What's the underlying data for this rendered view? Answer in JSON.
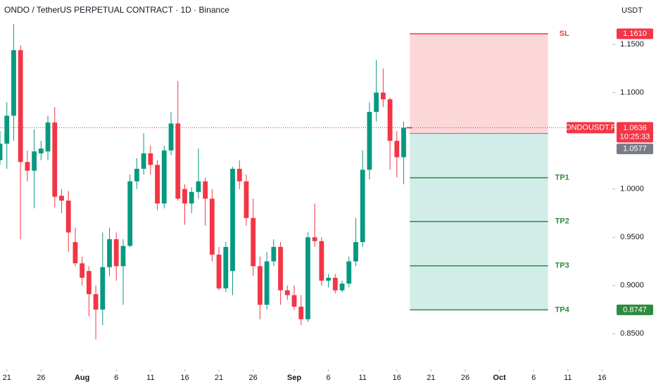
{
  "chart_data": {
    "type": "candlestick",
    "title": "ONDO / TetherUS PERPETUAL CONTRACT · 1D · Binance",
    "y_axis_label": "USDT",
    "up_color": "#089981",
    "down_color": "#f23645",
    "xlim": [
      0,
      89.5
    ],
    "ylim": [
      0.813,
      1.196
    ],
    "xticks": [
      {
        "value": 1,
        "label": "21"
      },
      {
        "value": 6,
        "label": "26"
      },
      {
        "value": 12,
        "label": "Aug"
      },
      {
        "value": 17,
        "label": "6"
      },
      {
        "value": 22,
        "label": "11"
      },
      {
        "value": 27,
        "label": "16"
      },
      {
        "value": 32,
        "label": "21"
      },
      {
        "value": 37,
        "label": "26"
      },
      {
        "value": 43,
        "label": "Sep"
      },
      {
        "value": 48,
        "label": "6"
      },
      {
        "value": 53,
        "label": "11"
      },
      {
        "value": 58,
        "label": "16"
      },
      {
        "value": 63,
        "label": "21"
      },
      {
        "value": 68,
        "label": "26"
      },
      {
        "value": 73,
        "label": "Oct"
      },
      {
        "value": 78,
        "label": "6"
      },
      {
        "value": 83,
        "label": "11"
      },
      {
        "value": 88,
        "label": "16"
      }
    ],
    "yticks": [
      {
        "value": 0.85,
        "label": "0.8500"
      },
      {
        "value": 0.9,
        "label": "0.9000"
      },
      {
        "value": 0.95,
        "label": "0.9500"
      },
      {
        "value": 1.0,
        "label": "1.0000"
      },
      {
        "value": 1.1,
        "label": "1.1000"
      },
      {
        "value": 1.15,
        "label": "1.1500"
      }
    ],
    "x": [
      0,
      1,
      2,
      3,
      4,
      5,
      6,
      7,
      8,
      9,
      10,
      11,
      12,
      13,
      14,
      15,
      16,
      17,
      18,
      19,
      20,
      21,
      22,
      23,
      24,
      25,
      26,
      27,
      28,
      29,
      30,
      31,
      32,
      33,
      34,
      35,
      36,
      37,
      38,
      39,
      40,
      41,
      42,
      43,
      44,
      45,
      46,
      47,
      48,
      49,
      50,
      51,
      52,
      53,
      54,
      55,
      56,
      57,
      58,
      59
    ],
    "open": [
      1.03,
      1.047,
      1.076,
      1.144,
      1.028,
      1.019,
      1.037,
      1.039,
      1.069,
      0.993,
      0.988,
      0.945,
      0.923,
      0.915,
      0.891,
      0.875,
      0.919,
      0.948,
      0.92,
      0.941,
      1.008,
      1.021,
      1.037,
      1.025,
      0.985,
      1.04,
      1.068,
      1.0,
      0.985,
      0.997,
      1.008,
      0.99,
      0.932,
      0.897,
      0.915,
      1.021,
      1.008,
      0.97,
      0.92,
      0.88,
      0.925,
      0.94,
      0.895,
      0.89,
      0.878,
      0.865,
      0.95,
      0.946,
      0.905,
      0.908,
      0.895,
      0.902,
      0.925,
      0.945,
      1.02,
      1.08,
      1.1,
      1.093,
      1.05,
      1.033
    ],
    "high": [
      1.06,
      1.09,
      1.171,
      1.149,
      1.04,
      1.062,
      1.05,
      1.076,
      1.085,
      1.0,
      0.998,
      0.96,
      0.93,
      0.92,
      0.9,
      0.955,
      0.96,
      0.955,
      0.948,
      1.015,
      1.032,
      1.058,
      1.045,
      1.03,
      1.045,
      1.08,
      1.112,
      1.005,
      1.002,
      1.042,
      1.012,
      1.0,
      0.94,
      0.945,
      1.023,
      1.03,
      1.015,
      0.99,
      0.93,
      0.935,
      0.948,
      0.945,
      0.9,
      0.9,
      0.89,
      0.955,
      0.985,
      0.95,
      0.912,
      0.912,
      0.905,
      0.93,
      0.97,
      1.04,
      1.09,
      1.134,
      1.125,
      1.095,
      1.06,
      1.07
    ],
    "low": [
      1.025,
      1.021,
      1.05,
      0.948,
      1.008,
      0.98,
      1.03,
      1.03,
      0.981,
      0.975,
      0.935,
      0.92,
      0.9,
      0.868,
      0.844,
      0.859,
      0.91,
      0.905,
      0.88,
      0.94,
      1.0,
      1.015,
      1.015,
      0.978,
      0.98,
      1.035,
      0.988,
      0.963,
      0.975,
      0.99,
      0.962,
      0.925,
      0.895,
      0.893,
      0.89,
      1.0,
      0.962,
      0.91,
      0.865,
      0.875,
      0.92,
      0.88,
      0.885,
      0.875,
      0.859,
      0.862,
      0.94,
      0.9,
      0.898,
      0.892,
      0.893,
      0.898,
      0.92,
      0.94,
      1.01,
      1.07,
      1.085,
      1.02,
      1.012,
      1.005
    ],
    "close": [
      1.047,
      1.076,
      1.144,
      1.028,
      1.019,
      1.039,
      1.042,
      1.069,
      0.992,
      0.988,
      0.955,
      0.923,
      0.908,
      0.891,
      0.875,
      0.919,
      0.948,
      0.92,
      0.941,
      1.008,
      1.021,
      1.037,
      1.025,
      0.985,
      1.04,
      1.068,
      0.99,
      0.985,
      0.997,
      1.008,
      0.99,
      0.932,
      0.897,
      0.94,
      1.021,
      1.008,
      0.97,
      0.92,
      0.88,
      0.925,
      0.94,
      0.895,
      0.89,
      0.878,
      0.865,
      0.95,
      0.946,
      0.905,
      0.908,
      0.895,
      0.902,
      0.925,
      0.945,
      1.02,
      1.08,
      1.1,
      1.093,
      1.05,
      1.033,
      1.0636
    ],
    "last_price": {
      "value": 1.0636,
      "symbol": "ONDOUSDT.P",
      "countdown": "10:25:33"
    },
    "position": {
      "start_x": 59.9,
      "end_x": 80.1,
      "entry": 1.0577,
      "stop": {
        "label": "SL",
        "value": 1.161,
        "value_label": "1.1610"
      },
      "targets": [
        {
          "label": "TP1",
          "value": 1.0117
        },
        {
          "label": "TP2",
          "value": 0.9664
        },
        {
          "label": "TP3",
          "value": 0.9204
        },
        {
          "label": "TP4",
          "value": 0.8747
        }
      ],
      "stop_color": "#f23645",
      "target_color": "#2e8b3e"
    }
  }
}
